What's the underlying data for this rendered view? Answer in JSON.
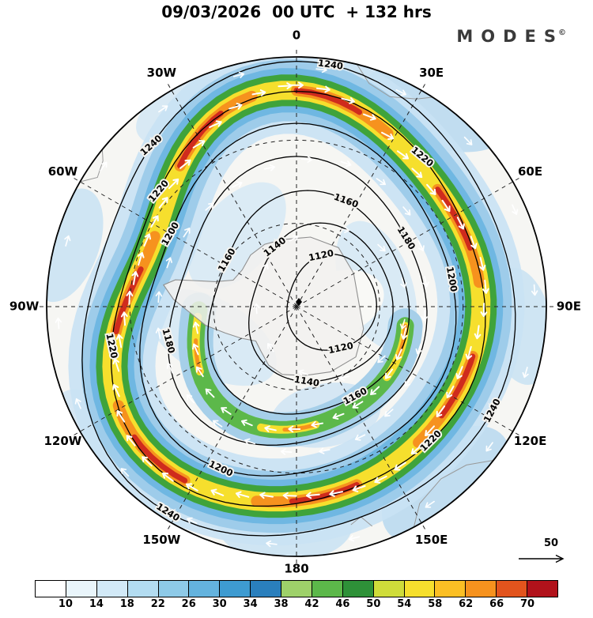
{
  "title": "09/03/2026  00 UTC  + 132 hrs",
  "brand": {
    "name": "MODES",
    "mark": "©"
  },
  "chart_data": {
    "type": "heatmap",
    "contour_labels": [
      1120,
      1140,
      1160,
      1180,
      1200,
      1220,
      1240
    ],
    "longitude_labels": [
      "0",
      "30E",
      "60E",
      "90E",
      "120E",
      "150E",
      "180",
      "150W",
      "120W",
      "90W",
      "60W",
      "30W"
    ],
    "colorbar": {
      "ticks": [
        10,
        14,
        18,
        22,
        26,
        30,
        34,
        38,
        42,
        46,
        50,
        54,
        58,
        62,
        66,
        70
      ],
      "colors": [
        "#ffffff",
        "#e9f5fb",
        "#d2e9f7",
        "#b3dcf1",
        "#8ecae8",
        "#64b3de",
        "#3e9bd1",
        "#2a7fbd",
        "#9ed16a",
        "#5cb84a",
        "#2e9138",
        "#cfdc3a",
        "#f6df2d",
        "#fbbf24",
        "#f6921e",
        "#e2541d",
        "#b1121b"
      ]
    },
    "reference_arrow": {
      "label": "50"
    }
  }
}
